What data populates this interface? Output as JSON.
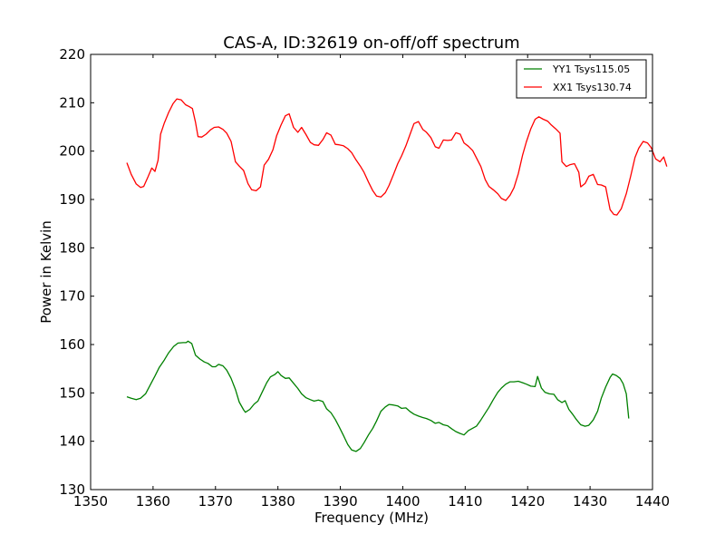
{
  "chart_data": {
    "type": "line",
    "title": "CAS-A, ID:32619 on-off/off spectrum",
    "xlabel": "Frequency (MHz)",
    "ylabel": "Power in Kelvin",
    "xlim": [
      1350,
      1440
    ],
    "ylim": [
      130,
      220
    ],
    "xticks": [
      1350,
      1360,
      1370,
      1380,
      1390,
      1400,
      1410,
      1420,
      1430,
      1440
    ],
    "yticks": [
      130,
      140,
      150,
      160,
      170,
      180,
      190,
      200,
      210,
      220
    ],
    "grid": false,
    "legend_position": "top-right",
    "series": [
      {
        "name": "YY1 Tsys115.05",
        "color": "#008000",
        "points": [
          [
            1355.8,
            149.2
          ],
          [
            1356.5,
            148.9
          ],
          [
            1357.3,
            148.6
          ],
          [
            1358,
            148.9
          ],
          [
            1358.8,
            149.8
          ],
          [
            1359.5,
            151.5
          ],
          [
            1360.3,
            153.5
          ],
          [
            1361,
            155.3
          ],
          [
            1361.8,
            156.8
          ],
          [
            1362.5,
            158.3
          ],
          [
            1363.3,
            159.6
          ],
          [
            1364,
            160.3
          ],
          [
            1364.8,
            160.4
          ],
          [
            1365.3,
            160.4
          ],
          [
            1365.6,
            160.7
          ],
          [
            1366.2,
            160.2
          ],
          [
            1366.8,
            157.8
          ],
          [
            1367.5,
            157.0
          ],
          [
            1368.2,
            156.4
          ],
          [
            1368.8,
            156.1
          ],
          [
            1369.5,
            155.4
          ],
          [
            1370,
            155.4
          ],
          [
            1370.5,
            155.9
          ],
          [
            1371.2,
            155.6
          ],
          [
            1371.8,
            154.7
          ],
          [
            1372.5,
            153.0
          ],
          [
            1373.2,
            150.7
          ],
          [
            1373.8,
            148.1
          ],
          [
            1374.5,
            146.5
          ],
          [
            1374.8,
            146.0
          ],
          [
            1375.5,
            146.6
          ],
          [
            1376.2,
            147.7
          ],
          [
            1376.8,
            148.3
          ],
          [
            1377.5,
            150.2
          ],
          [
            1378.2,
            152.1
          ],
          [
            1378.8,
            153.3
          ],
          [
            1379.5,
            153.8
          ],
          [
            1380,
            154.4
          ],
          [
            1380.5,
            153.6
          ],
          [
            1381.2,
            153.0
          ],
          [
            1381.8,
            153.1
          ],
          [
            1382.5,
            152.0
          ],
          [
            1383.2,
            150.9
          ],
          [
            1383.8,
            149.8
          ],
          [
            1384.5,
            149.0
          ],
          [
            1385.2,
            148.6
          ],
          [
            1385.8,
            148.3
          ],
          [
            1386.5,
            148.5
          ],
          [
            1387.2,
            148.2
          ],
          [
            1387.8,
            146.7
          ],
          [
            1388.5,
            145.9
          ],
          [
            1389.2,
            144.5
          ],
          [
            1389.8,
            143.0
          ],
          [
            1390.5,
            141.2
          ],
          [
            1391.2,
            139.3
          ],
          [
            1391.8,
            138.2
          ],
          [
            1392.5,
            137.9
          ],
          [
            1393.2,
            138.5
          ],
          [
            1393.8,
            139.7
          ],
          [
            1394.5,
            141.3
          ],
          [
            1395.2,
            142.7
          ],
          [
            1395.8,
            144.2
          ],
          [
            1396.5,
            146.2
          ],
          [
            1397.2,
            147.1
          ],
          [
            1397.8,
            147.6
          ],
          [
            1398.5,
            147.5
          ],
          [
            1399.2,
            147.3
          ],
          [
            1399.8,
            146.8
          ],
          [
            1400.5,
            146.9
          ],
          [
            1401.2,
            146.1
          ],
          [
            1401.8,
            145.6
          ],
          [
            1402.5,
            145.2
          ],
          [
            1403.2,
            144.9
          ],
          [
            1403.8,
            144.7
          ],
          [
            1404.5,
            144.3
          ],
          [
            1405.2,
            143.7
          ],
          [
            1405.8,
            143.9
          ],
          [
            1406.5,
            143.4
          ],
          [
            1407.2,
            143.2
          ],
          [
            1407.8,
            142.6
          ],
          [
            1408.5,
            142.0
          ],
          [
            1409.2,
            141.6
          ],
          [
            1409.8,
            141.3
          ],
          [
            1410.5,
            142.2
          ],
          [
            1411.2,
            142.7
          ],
          [
            1411.8,
            143.1
          ],
          [
            1412.5,
            144.4
          ],
          [
            1413.2,
            145.8
          ],
          [
            1413.8,
            147.0
          ],
          [
            1414.5,
            148.6
          ],
          [
            1415.2,
            150.1
          ],
          [
            1415.8,
            151.0
          ],
          [
            1416.5,
            151.8
          ],
          [
            1417.2,
            152.3
          ],
          [
            1417.8,
            152.3
          ],
          [
            1418.5,
            152.4
          ],
          [
            1419.2,
            152.1
          ],
          [
            1419.8,
            151.8
          ],
          [
            1420.5,
            151.4
          ],
          [
            1421.2,
            151.3
          ],
          [
            1421.6,
            153.4
          ],
          [
            1422.2,
            151.0
          ],
          [
            1422.8,
            150.1
          ],
          [
            1423.5,
            149.8
          ],
          [
            1424.2,
            149.7
          ],
          [
            1424.8,
            148.6
          ],
          [
            1425.5,
            148.0
          ],
          [
            1426,
            148.4
          ],
          [
            1426.6,
            146.6
          ],
          [
            1427.2,
            145.6
          ],
          [
            1427.8,
            144.5
          ],
          [
            1428.5,
            143.4
          ],
          [
            1429.2,
            143.1
          ],
          [
            1429.8,
            143.3
          ],
          [
            1430.5,
            144.4
          ],
          [
            1431.2,
            146.2
          ],
          [
            1431.8,
            148.9
          ],
          [
            1432.5,
            151.2
          ],
          [
            1433.2,
            153.2
          ],
          [
            1433.6,
            153.9
          ],
          [
            1434.2,
            153.6
          ],
          [
            1434.8,
            153.0
          ],
          [
            1435.3,
            151.9
          ],
          [
            1435.8,
            149.8
          ],
          [
            1436.2,
            144.7
          ]
        ]
      },
      {
        "name": "XX1 Tsys130.74",
        "color": "#ff0000",
        "points": [
          [
            1355.8,
            197.6
          ],
          [
            1356.5,
            195.2
          ],
          [
            1357.3,
            193.2
          ],
          [
            1358,
            192.5
          ],
          [
            1358.5,
            192.7
          ],
          [
            1359.2,
            194.7
          ],
          [
            1359.8,
            196.5
          ],
          [
            1360.3,
            195.8
          ],
          [
            1360.8,
            198.1
          ],
          [
            1361.2,
            203.5
          ],
          [
            1361.8,
            205.8
          ],
          [
            1362.5,
            208.0
          ],
          [
            1363.2,
            209.8
          ],
          [
            1363.8,
            210.8
          ],
          [
            1364.5,
            210.6
          ],
          [
            1365.2,
            209.6
          ],
          [
            1365.8,
            209.2
          ],
          [
            1366.3,
            208.8
          ],
          [
            1366.8,
            206.0
          ],
          [
            1367.2,
            203.0
          ],
          [
            1367.8,
            202.9
          ],
          [
            1368.5,
            203.5
          ],
          [
            1369.2,
            204.4
          ],
          [
            1369.8,
            204.9
          ],
          [
            1370.5,
            205.0
          ],
          [
            1371.2,
            204.5
          ],
          [
            1371.8,
            203.7
          ],
          [
            1372.5,
            202.0
          ],
          [
            1373.2,
            197.8
          ],
          [
            1373.8,
            196.9
          ],
          [
            1374.5,
            196.0
          ],
          [
            1375.2,
            193.3
          ],
          [
            1375.8,
            192.0
          ],
          [
            1376.5,
            191.8
          ],
          [
            1377.2,
            192.6
          ],
          [
            1377.8,
            197.1
          ],
          [
            1378.5,
            198.3
          ],
          [
            1379.2,
            200.3
          ],
          [
            1379.8,
            203.2
          ],
          [
            1380.5,
            205.4
          ],
          [
            1381.2,
            207.3
          ],
          [
            1381.8,
            207.7
          ],
          [
            1382.5,
            204.9
          ],
          [
            1383.2,
            203.9
          ],
          [
            1383.8,
            204.9
          ],
          [
            1384.5,
            203.4
          ],
          [
            1385.2,
            201.8
          ],
          [
            1385.8,
            201.3
          ],
          [
            1386.5,
            201.2
          ],
          [
            1387.2,
            202.4
          ],
          [
            1387.8,
            203.8
          ],
          [
            1388.5,
            203.3
          ],
          [
            1389.2,
            201.4
          ],
          [
            1389.8,
            201.3
          ],
          [
            1390.5,
            201.1
          ],
          [
            1391.2,
            200.5
          ],
          [
            1391.8,
            199.7
          ],
          [
            1392.5,
            198.2
          ],
          [
            1393.2,
            196.9
          ],
          [
            1393.8,
            195.6
          ],
          [
            1394.5,
            193.6
          ],
          [
            1395.2,
            191.8
          ],
          [
            1395.8,
            190.7
          ],
          [
            1396.5,
            190.5
          ],
          [
            1397.2,
            191.4
          ],
          [
            1397.8,
            192.9
          ],
          [
            1398.5,
            195.1
          ],
          [
            1399.2,
            197.4
          ],
          [
            1399.8,
            199.0
          ],
          [
            1400.5,
            201.1
          ],
          [
            1401.2,
            203.6
          ],
          [
            1401.8,
            205.7
          ],
          [
            1402.5,
            206.1
          ],
          [
            1403.2,
            204.5
          ],
          [
            1403.8,
            203.9
          ],
          [
            1404.5,
            202.8
          ],
          [
            1405.2,
            200.9
          ],
          [
            1405.8,
            200.6
          ],
          [
            1406.5,
            202.3
          ],
          [
            1407.2,
            202.2
          ],
          [
            1407.8,
            202.3
          ],
          [
            1408.5,
            203.8
          ],
          [
            1409.2,
            203.5
          ],
          [
            1409.8,
            201.7
          ],
          [
            1410.5,
            201.0
          ],
          [
            1411.2,
            200.1
          ],
          [
            1411.8,
            198.6
          ],
          [
            1412.5,
            196.8
          ],
          [
            1413.2,
            194.1
          ],
          [
            1413.8,
            192.7
          ],
          [
            1414.5,
            192.0
          ],
          [
            1415.2,
            191.2
          ],
          [
            1415.8,
            190.2
          ],
          [
            1416.5,
            189.8
          ],
          [
            1417.2,
            190.9
          ],
          [
            1417.8,
            192.4
          ],
          [
            1418.5,
            195.3
          ],
          [
            1419.2,
            199.2
          ],
          [
            1419.8,
            201.9
          ],
          [
            1420.5,
            204.6
          ],
          [
            1421.2,
            206.6
          ],
          [
            1421.8,
            207.1
          ],
          [
            1422.5,
            206.6
          ],
          [
            1423.2,
            206.2
          ],
          [
            1423.8,
            205.4
          ],
          [
            1424.5,
            204.6
          ],
          [
            1425.2,
            203.7
          ],
          [
            1425.5,
            197.8
          ],
          [
            1426.2,
            196.8
          ],
          [
            1426.8,
            197.2
          ],
          [
            1427.5,
            197.4
          ],
          [
            1428.2,
            195.6
          ],
          [
            1428.5,
            192.6
          ],
          [
            1429.2,
            193.3
          ],
          [
            1429.8,
            194.8
          ],
          [
            1430.5,
            195.2
          ],
          [
            1431.2,
            193.1
          ],
          [
            1431.8,
            193.0
          ],
          [
            1432.5,
            192.6
          ],
          [
            1433.2,
            187.9
          ],
          [
            1433.8,
            186.9
          ],
          [
            1434.3,
            186.8
          ],
          [
            1435,
            188.1
          ],
          [
            1435.8,
            191.2
          ],
          [
            1436.5,
            194.8
          ],
          [
            1437.2,
            198.7
          ],
          [
            1437.8,
            200.6
          ],
          [
            1438.5,
            202.0
          ],
          [
            1439.2,
            201.7
          ],
          [
            1439.8,
            200.7
          ],
          [
            1440.5,
            198.4
          ],
          [
            1441.2,
            197.8
          ],
          [
            1441.8,
            198.8
          ],
          [
            1442.3,
            196.8
          ]
        ]
      }
    ]
  }
}
